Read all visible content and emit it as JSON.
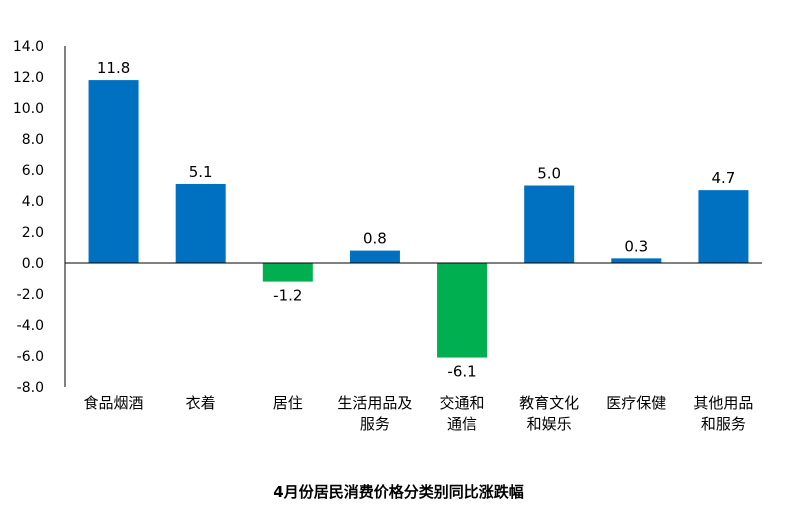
{
  "chart_data": {
    "type": "bar",
    "title": "4月份居民消费价格分类别同比涨跌幅",
    "xlabel": "",
    "ylabel": "",
    "ylim": [
      -8.0,
      14.0
    ],
    "yticks": [
      "14.0",
      "12.0",
      "10.0",
      "8.0",
      "6.0",
      "4.0",
      "2.0",
      "0.0",
      "-2.0",
      "-4.0",
      "-6.0",
      "-8.0"
    ],
    "grid": false,
    "legend": "none",
    "categories": [
      [
        "食品烟酒"
      ],
      [
        "衣着"
      ],
      [
        "居住"
      ],
      [
        "生活用品及",
        "服务"
      ],
      [
        "交通和",
        "通信"
      ],
      [
        "教育文化",
        "和娱乐"
      ],
      [
        "医疗保健"
      ],
      [
        "其他用品",
        "和服务"
      ]
    ],
    "values": [
      11.8,
      5.1,
      -1.2,
      0.8,
      -6.1,
      5.0,
      0.3,
      4.7
    ],
    "value_labels": [
      "11.8",
      "5.1",
      "-1.2",
      "0.8",
      "-6.1",
      "5.0",
      "0.3",
      "4.7"
    ],
    "colors": {
      "positive": "#0070C0",
      "negative": "#00B050",
      "axis": "#000000"
    }
  }
}
